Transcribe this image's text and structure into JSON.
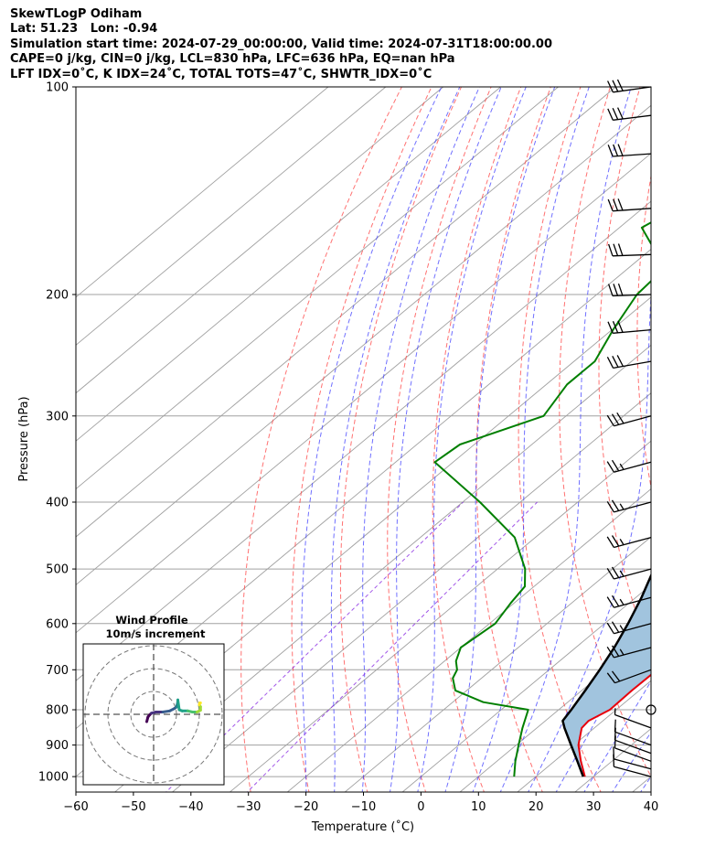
{
  "header": {
    "line1": "SkewTLogP Odiham",
    "line2": "Lat: 51.23   Lon: -0.94",
    "line3": "Simulation start time: 2024-07-29_00:00:00, Valid time: 2024-07-31T18:00:00.00",
    "line4": "CAPE=0 j/kg, CIN=0 j/kg, LCL=830 hPa, LFC=636 hPa, EQ=nan hPa",
    "line5": "LFT IDX=0˚C, K IDX=24˚C, TOTAL TOTS=47˚C, SHWTR_IDX=0˚C"
  },
  "chart_data": {
    "type": "line",
    "title": "SkewTLogP Odiham",
    "xlabel": "Temperature (˚C)",
    "ylabel": "Pressure (hPa)",
    "xlim": [
      -60,
      40
    ],
    "ylim": [
      1050,
      100
    ],
    "y_scale": "log",
    "x_ticks": [
      "−60",
      "−50",
      "−40",
      "−30",
      "−20",
      "−10",
      "0",
      "10",
      "20",
      "30",
      "40"
    ],
    "y_ticks": [
      "1000",
      "900",
      "800",
      "700",
      "600",
      "500",
      "400",
      "300",
      "200",
      "100"
    ],
    "colors": {
      "temperature": "#e8000b",
      "dewpoint": "#007f00",
      "parcel": "#000000",
      "cape_fill": "#a1c4de",
      "dry_adiabats": "#ff4d4d",
      "moist_adiabats": "#4040ff",
      "mixing_ratio": "#8a2be2",
      "isotherms": "#a0a0a0"
    },
    "series": [
      {
        "name": "temperature",
        "pressure": [
          1000,
          950,
          900,
          850,
          830,
          800,
          750,
          700,
          650,
          600,
          550,
          500,
          450,
          400,
          350,
          300,
          250,
          225,
          200,
          190,
          180,
          170,
          160,
          150,
          140,
          130,
          120,
          110,
          105,
          100
        ],
        "temperature": [
          28.5,
          24.6,
          20.8,
          17.8,
          17.5,
          18.9,
          18.7,
          18.8,
          15.3,
          11.3,
          7.8,
          4.8,
          0.0,
          -6.7,
          -15.4,
          -23.9,
          -34.1,
          -40.6,
          -48.4,
          -46.5,
          -48.3,
          -48.8,
          -50.1,
          -50.8,
          -53.1,
          -54.0,
          -53.6,
          -53.8,
          -55.1,
          -55.6
        ]
      },
      {
        "name": "dewpoint",
        "pressure": [
          1000,
          950,
          900,
          850,
          800,
          780,
          750,
          720,
          700,
          680,
          650,
          600,
          560,
          530,
          500,
          450,
          400,
          350,
          330,
          300,
          270,
          250,
          225,
          200,
          190,
          170,
          160,
          150,
          140,
          120,
          100
        ],
        "temperature": [
          16.2,
          13.2,
          10.4,
          7.5,
          4.7,
          -4.7,
          -12.0,
          -15.0,
          -16.0,
          -18.0,
          -20.0,
          -19.0,
          -20.6,
          -21.6,
          -25.2,
          -33.6,
          -47.0,
          -63.2,
          -62.5,
          -53.9,
          -56.4,
          -56.4,
          -59.8,
          -63.0,
          -63.4,
          -70.5,
          -76.1,
          -74.1,
          -73.7,
          -71.7,
          -70.5
        ]
      },
      {
        "name": "parcel",
        "pressure": [
          1000,
          950,
          900,
          850,
          830,
          800,
          750,
          700,
          650,
          636,
          600,
          550,
          500,
          450,
          400,
          350,
          300,
          250,
          200,
          150,
          100
        ],
        "temperature": [
          28.2,
          24.0,
          19.5,
          14.8,
          13.0,
          12.2,
          10.6,
          8.8,
          6.7,
          6.0,
          4.1,
          1.0,
          -2.8,
          -7.4,
          -13.5,
          -21.2,
          -30.5,
          -42.4,
          -56.5,
          -72.7,
          -94.6
        ]
      }
    ],
    "wind_barbs": {
      "pressure": [
        1000,
        975,
        950,
        925,
        900,
        850,
        800,
        700,
        650,
        600,
        550,
        500,
        450,
        400,
        350,
        300,
        250,
        225,
        200,
        175,
        150,
        125,
        110,
        100
      ],
      "speed_kt": [
        10,
        12,
        12,
        10,
        10,
        6,
        0,
        22,
        24,
        26,
        26,
        26,
        26,
        26,
        26,
        28,
        30,
        30,
        30,
        32,
        32,
        30,
        30,
        30
      ],
      "direction_deg": [
        285,
        285,
        290,
        290,
        290,
        290,
        0,
        250,
        255,
        255,
        255,
        255,
        255,
        255,
        255,
        255,
        260,
        265,
        268,
        268,
        266,
        266,
        263,
        262
      ]
    },
    "hodograph": {
      "title": "Wind Profile",
      "subtitle": "10m/s increment",
      "u": [
        -3,
        -2.5,
        -2,
        -1,
        1,
        4,
        7,
        9,
        10,
        10.5,
        10.6,
        11.2,
        12.5,
        15,
        17,
        19,
        20.5,
        20.5,
        20.0,
        20.2,
        20.5
      ],
      "v": [
        -3.2,
        -1.2,
        -0.5,
        0.5,
        1,
        1,
        1.5,
        2.5,
        3.2,
        5,
        6.3,
        2.0,
        1.5,
        1.5,
        1.0,
        1.0,
        1.8,
        3.3,
        4.2,
        5,
        5
      ]
    }
  }
}
